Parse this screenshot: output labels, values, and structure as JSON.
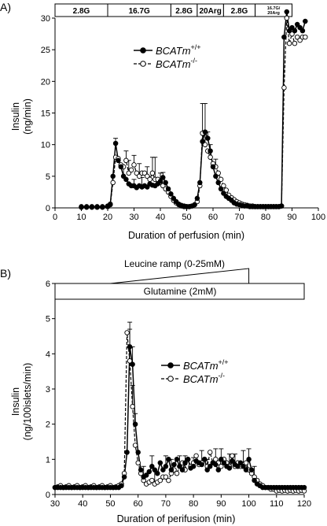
{
  "chart_data": [
    {
      "type": "line",
      "panel_label": "A)",
      "xlabel": "Duration of perfusion (min)",
      "ylabel": [
        "Insulin",
        "(ng/min)"
      ],
      "xlim": [
        0,
        100
      ],
      "ylim": [
        0,
        30
      ],
      "xticks": [
        0,
        10,
        20,
        30,
        40,
        50,
        60,
        70,
        80,
        90,
        100
      ],
      "yticks": [
        0,
        5,
        10,
        15,
        20,
        25,
        30
      ],
      "conditions": [
        {
          "label": "2.8G",
          "start": 0,
          "end": 20
        },
        {
          "label": "16.7G",
          "start": 20,
          "end": 44
        },
        {
          "label": "2.8G",
          "start": 44,
          "end": 54
        },
        {
          "label": "20Arg",
          "start": 54,
          "end": 64
        },
        {
          "label": "2.8G",
          "start": 64,
          "end": 76
        },
        {
          "label_lines": [
            "16.7G/",
            "20Arg"
          ],
          "start": 76,
          "end": 90
        }
      ],
      "legend": {
        "placement": "upper-middle",
        "entries": [
          {
            "base": "BCATm",
            "sup": "+/+",
            "marker": "filled"
          },
          {
            "base": "BCATm",
            "sup": "-/-",
            "marker": "open"
          }
        ]
      },
      "series": [
        {
          "key": "wt",
          "marker": "filled",
          "line": "solid",
          "x": [
            10,
            12,
            14,
            16,
            18,
            20,
            21,
            22,
            23,
            24,
            25,
            26,
            27,
            28,
            29,
            30,
            31,
            32,
            33,
            34,
            35,
            36,
            37,
            38,
            39,
            40,
            41,
            42,
            43,
            44,
            45,
            46,
            47,
            48,
            49,
            50,
            51,
            52,
            53,
            54,
            55,
            56,
            57,
            58,
            59,
            60,
            61,
            62,
            63,
            64,
            65,
            66,
            67,
            68,
            69,
            70,
            71,
            72,
            73,
            74,
            75,
            76,
            77,
            78,
            79,
            80,
            81,
            82,
            83,
            84,
            85,
            86,
            87,
            88,
            89,
            90,
            91,
            92,
            93,
            94,
            95
          ],
          "y": [
            0.2,
            0.2,
            0.2,
            0.2,
            0.2,
            0.3,
            0.6,
            5.0,
            10.2,
            7.5,
            6.5,
            5.0,
            4.5,
            3.8,
            3.5,
            3.5,
            3.2,
            3.5,
            3.3,
            3.5,
            3.3,
            3.8,
            3.6,
            3.5,
            3.8,
            4.2,
            4.8,
            4.0,
            3.0,
            2.2,
            1.5,
            1.0,
            0.6,
            0.4,
            0.3,
            0.2,
            0.2,
            0.3,
            0.5,
            1.5,
            4.0,
            10.5,
            12.0,
            11.0,
            9.0,
            6.5,
            5.0,
            4.0,
            3.0,
            2.3,
            1.8,
            1.5,
            1.2,
            0.8,
            0.6,
            0.5,
            0.4,
            0.3,
            0.3,
            0.2,
            0.2,
            0.2,
            0.2,
            0.2,
            0.2,
            0.2,
            0.2,
            0.2,
            0.2,
            0.2,
            0.2,
            0.3,
            27.0,
            31.0,
            28.0,
            28.5,
            28.0,
            29.0,
            28.5,
            28.0,
            29.5
          ],
          "error_up": {
            "23": 0.8,
            "26": 1.5,
            "30": 1.0,
            "33": 1.5,
            "36": 1.2,
            "41": 0.8,
            "56": 1.5,
            "58": 1.0
          }
        },
        {
          "key": "ko",
          "marker": "open",
          "line": "dashed",
          "x": [
            10,
            12,
            14,
            16,
            18,
            20,
            21,
            22,
            23,
            24,
            25,
            26,
            27,
            28,
            29,
            30,
            31,
            32,
            33,
            34,
            35,
            36,
            37,
            38,
            39,
            40,
            41,
            42,
            43,
            44,
            45,
            46,
            47,
            48,
            49,
            50,
            51,
            52,
            53,
            54,
            55,
            56,
            57,
            58,
            59,
            60,
            61,
            62,
            63,
            64,
            65,
            66,
            67,
            68,
            69,
            70,
            71,
            72,
            73,
            74,
            75,
            76,
            77,
            78,
            79,
            80,
            81,
            82,
            83,
            84,
            85,
            86,
            87,
            88,
            89,
            90,
            91,
            92,
            93,
            94,
            95
          ],
          "y": [
            0.1,
            0.1,
            0.1,
            0.1,
            0.1,
            0.2,
            0.5,
            4.0,
            8.0,
            7.8,
            6.8,
            6.5,
            7.5,
            5.5,
            6.0,
            6.8,
            5.5,
            5.0,
            5.5,
            5.5,
            5.0,
            4.5,
            5.5,
            4.5,
            4.5,
            4.0,
            3.5,
            3.0,
            2.5,
            1.8,
            1.2,
            0.8,
            0.5,
            0.3,
            0.2,
            0.2,
            0.2,
            0.3,
            0.5,
            1.0,
            3.5,
            11.8,
            10.0,
            9.0,
            8.0,
            7.0,
            6.5,
            5.5,
            4.5,
            3.5,
            2.8,
            2.0,
            1.6,
            1.3,
            1.0,
            0.8,
            0.6,
            0.5,
            0.4,
            0.3,
            0.3,
            0.2,
            0.2,
            0.2,
            0.2,
            0.2,
            0.2,
            0.2,
            0.2,
            0.2,
            0.2,
            0.3,
            19.0,
            30.0,
            26.0,
            27.5,
            26.0,
            27.0,
            26.5,
            27.0,
            27.0
          ],
          "error_up": {
            "27": 1.5,
            "28": 2.0,
            "30": 1.5,
            "32": 2.0,
            "35": 1.5,
            "37": 2.5,
            "38": 3.5,
            "40": 1.5,
            "56": 4.7,
            "57": 6.5,
            "59": 2.0,
            "61": 1.2
          }
        }
      ]
    },
    {
      "type": "line",
      "panel_label": "B)",
      "xlabel": "Duration of perifusion (min)",
      "ylabel": [
        "Insulin",
        "(ng/100islets/min)"
      ],
      "xlim": [
        30,
        120
      ],
      "ylim": [
        0,
        6
      ],
      "xticks": [
        30,
        40,
        50,
        60,
        70,
        80,
        90,
        100,
        110,
        120
      ],
      "yticks": [
        0,
        1,
        2,
        3,
        4,
        5,
        6
      ],
      "ramp": {
        "label": "Leucine ramp (0-25mM)",
        "start": 50,
        "end": 100
      },
      "bar": {
        "label": "Glutamine (2mM)",
        "start": 30,
        "end": 120
      },
      "legend": {
        "placement": "upper-right",
        "entries": [
          {
            "base": "BCATm",
            "sup": "+/+",
            "marker": "filled"
          },
          {
            "base": "BCATm",
            "sup": "-/-",
            "marker": "open"
          }
        ]
      },
      "series": [
        {
          "key": "wt",
          "marker": "filled",
          "line": "solid",
          "x": [
            30,
            31,
            32,
            33,
            34,
            35,
            36,
            37,
            38,
            39,
            40,
            41,
            42,
            43,
            44,
            45,
            46,
            47,
            48,
            49,
            50,
            51,
            52,
            53,
            54,
            55,
            56,
            57,
            58,
            59,
            60,
            61,
            62,
            63,
            64,
            65,
            66,
            67,
            68,
            69,
            70,
            71,
            72,
            73,
            74,
            75,
            76,
            77,
            78,
            79,
            80,
            81,
            82,
            83,
            84,
            85,
            86,
            87,
            88,
            89,
            90,
            91,
            92,
            93,
            94,
            95,
            96,
            97,
            98,
            99,
            100,
            101,
            102,
            103,
            104,
            105,
            106,
            107,
            108,
            109,
            110,
            111,
            112,
            113,
            114,
            115,
            116,
            117,
            118,
            119,
            120
          ],
          "y": [
            0.2,
            0.2,
            0.2,
            0.2,
            0.2,
            0.2,
            0.2,
            0.2,
            0.2,
            0.2,
            0.2,
            0.2,
            0.2,
            0.2,
            0.2,
            0.2,
            0.2,
            0.2,
            0.2,
            0.2,
            0.2,
            0.2,
            0.2,
            0.2,
            0.25,
            0.5,
            1.2,
            4.2,
            3.7,
            2.0,
            1.2,
            0.7,
            0.5,
            0.55,
            0.65,
            0.8,
            0.7,
            0.6,
            0.9,
            0.7,
            0.8,
            1.0,
            0.7,
            0.85,
            1.0,
            0.8,
            0.7,
            0.9,
            1.0,
            0.75,
            0.8,
            0.95,
            0.9,
            0.85,
            1.0,
            0.7,
            0.8,
            0.9,
            0.85,
            0.7,
            1.0,
            0.9,
            0.8,
            0.75,
            0.95,
            0.85,
            0.8,
            0.9,
            0.8,
            0.7,
            1.0,
            0.7,
            0.4,
            0.3,
            0.25,
            0.2,
            0.2,
            0.2,
            0.2,
            0.2,
            0.2,
            0.2,
            0.2,
            0.2,
            0.2,
            0.2,
            0.2,
            0.2,
            0.2,
            0.2,
            0.2
          ],
          "error_up": {
            "57": 0.7,
            "58": 0.5,
            "59": 0.3,
            "65": 0.3,
            "70": 0.3,
            "75": 0.3,
            "80": 0.25,
            "85": 0.3,
            "90": 0.3,
            "95": 0.3,
            "100": 0.3
          }
        },
        {
          "key": "ko",
          "marker": "open",
          "line": "dashed",
          "x": [
            30,
            31,
            32,
            33,
            34,
            35,
            36,
            37,
            38,
            39,
            40,
            41,
            42,
            43,
            44,
            45,
            46,
            47,
            48,
            49,
            50,
            51,
            52,
            53,
            54,
            55,
            56,
            57,
            58,
            59,
            60,
            61,
            62,
            63,
            64,
            65,
            66,
            67,
            68,
            69,
            70,
            71,
            72,
            73,
            74,
            75,
            76,
            77,
            78,
            79,
            80,
            81,
            82,
            83,
            84,
            85,
            86,
            87,
            88,
            89,
            90,
            91,
            92,
            93,
            94,
            95,
            96,
            97,
            98,
            99,
            100,
            101,
            102,
            103,
            104,
            105,
            106,
            107,
            108,
            109,
            110,
            111,
            112,
            113,
            114,
            115,
            116,
            117,
            118,
            119,
            120
          ],
          "y": [
            0.2,
            0.22,
            0.25,
            0.2,
            0.22,
            0.25,
            0.2,
            0.22,
            0.25,
            0.2,
            0.22,
            0.25,
            0.2,
            0.22,
            0.25,
            0.2,
            0.22,
            0.25,
            0.2,
            0.22,
            0.25,
            0.2,
            0.22,
            0.25,
            0.3,
            0.6,
            4.6,
            3.8,
            2.5,
            1.4,
            0.9,
            0.6,
            0.4,
            0.3,
            0.35,
            0.4,
            0.3,
            0.35,
            0.4,
            0.5,
            0.5,
            0.4,
            0.6,
            0.7,
            0.6,
            0.8,
            0.9,
            0.7,
            1.0,
            0.8,
            0.9,
            1.1,
            0.85,
            0.9,
            1.0,
            0.8,
            1.2,
            0.9,
            1.0,
            0.9,
            0.8,
            1.0,
            0.9,
            0.8,
            1.1,
            0.8,
            0.9,
            0.8,
            0.85,
            0.9,
            0.7,
            0.6,
            0.5,
            0.4,
            0.3,
            0.25,
            0.2,
            0.2,
            0.15,
            0.15,
            0.1,
            0.12,
            0.1,
            0.12,
            0.1,
            0.12,
            0.1,
            0.12,
            0.1,
            0.12,
            0.1
          ],
          "error_up": {
            "57": 0.9,
            "58": 0.6,
            "62": 0.4,
            "66": 0.4,
            "72": 0.4,
            "77": 0.4,
            "83": 0.35,
            "88": 0.3,
            "93": 0.35,
            "98": 0.4,
            "102": 0.3
          }
        }
      ]
    }
  ]
}
